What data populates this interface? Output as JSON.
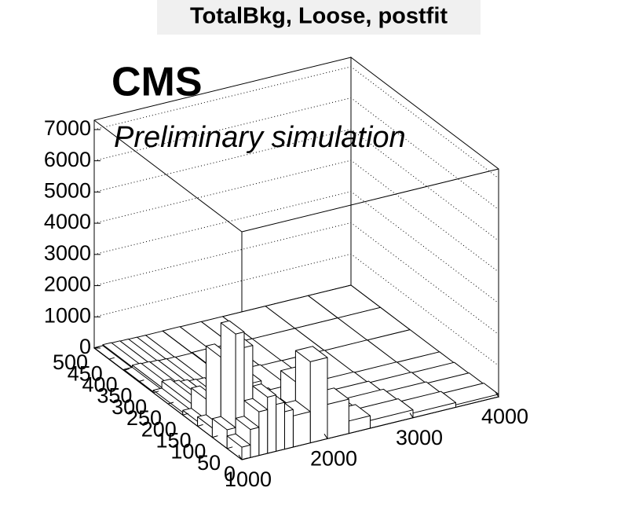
{
  "chart_data": {
    "type": "lego",
    "title": "TotalBkg, Loose, postfit",
    "annotations": [
      "CMS",
      "Preliminary simulation"
    ],
    "xbins": [
      1000,
      1100,
      1200,
      1300,
      1400,
      1500,
      1600,
      1800,
      2000,
      2250,
      2500,
      3000,
      3500,
      4000
    ],
    "ybins": [
      0,
      50,
      100,
      150,
      200,
      300,
      400,
      500
    ],
    "values": [
      [
        400,
        900,
        1400,
        1800,
        1500,
        1200,
        1000,
        2600,
        1100,
        400,
        250,
        150,
        80
      ],
      [
        600,
        3600,
        3100,
        1900,
        1300,
        900,
        700,
        1600,
        700,
        300,
        200,
        100,
        50
      ],
      [
        300,
        2500,
        1200,
        800,
        500,
        400,
        300,
        600,
        300,
        150,
        100,
        50,
        30
      ],
      [
        150,
        800,
        400,
        300,
        200,
        150,
        120,
        200,
        120,
        60,
        40,
        20,
        10
      ],
      [
        80,
        300,
        200,
        150,
        100,
        80,
        60,
        100,
        60,
        30,
        20,
        10,
        5
      ],
      [
        30,
        100,
        80,
        60,
        40,
        30,
        20,
        40,
        20,
        10,
        5,
        3,
        2
      ],
      [
        10,
        40,
        30,
        20,
        15,
        10,
        8,
        15,
        8,
        4,
        2,
        1,
        0
      ]
    ],
    "color": "#ffffff",
    "xlim": [
      1000,
      4000
    ],
    "xticks": [
      1000,
      2000,
      3000,
      4000
    ],
    "ylim": [
      0,
      500
    ],
    "yticks": [
      0,
      50,
      100,
      150,
      200,
      250,
      300,
      350,
      400,
      450,
      500
    ],
    "zlim": [
      0,
      7300
    ],
    "zticks": [
      0,
      1000,
      2000,
      3000,
      4000,
      5000,
      6000,
      7000
    ],
    "grid": true
  }
}
